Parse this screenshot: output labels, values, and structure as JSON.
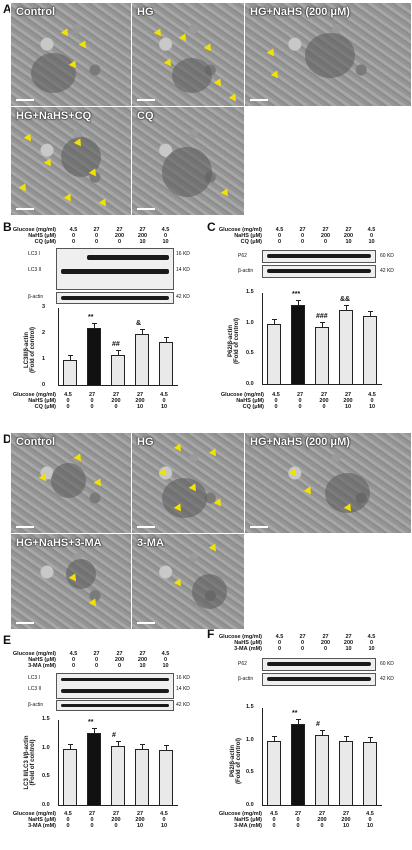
{
  "panel_letters": {
    "a": "A",
    "b": "B",
    "c": "C",
    "d": "D",
    "e": "E",
    "f": "F"
  },
  "em_top": {
    "control": "Control",
    "hg": "HG",
    "hg_nahs": "HG+NaHS (200 μM)",
    "hg_nahs_cq": "HG+NaHS+CQ",
    "cq": "CQ"
  },
  "em_bottom": {
    "control": "Control",
    "hg": "HG",
    "hg_nahs": "HG+NaHS (200 μM)",
    "hg_nahs_3ma": "HG+NaHS+3-MA",
    "three_ma": "3-MA"
  },
  "condition_labels": {
    "glucose": "Glucose (mg/ml)",
    "nahs": "NaHS (μM)",
    "cq": "CQ (μM)",
    "three_ma": "3-MA (mM)"
  },
  "cond_values": {
    "glucose": [
      "4.5",
      "27",
      "27",
      "27",
      "4.5"
    ],
    "nahs": [
      "0",
      "0",
      "200",
      "200",
      "0"
    ],
    "inhib": [
      "0",
      "0",
      "0",
      "10",
      "10"
    ]
  },
  "blot_labels": {
    "lc3i": "LC3 I",
    "lc3ii": "LC3 II",
    "bactin": "β-actin",
    "p62": "P62",
    "kd16": "16 KD",
    "kd14": "14 KD",
    "kd42": "42 KD",
    "kd60": "60 KD"
  },
  "axis_titles": {
    "b": [
      "LC3II/β-actin",
      "(Fold of control)"
    ],
    "c": [
      "P62/β-actin",
      "(Fold of control)"
    ],
    "e": [
      "LC3 II/LC3 I/β-actin",
      "(Fold of control)"
    ],
    "f": [
      "P62/β-actin",
      "(Fold of control)"
    ]
  },
  "chart_data": [
    {
      "type": "bar",
      "panel": "B",
      "ylim": [
        0,
        3
      ],
      "yticks": [
        "0",
        "1",
        "2",
        "3"
      ],
      "values": [
        1.0,
        2.25,
        1.2,
        2.0,
        1.7
      ],
      "sig": [
        "",
        "**",
        "##",
        "&",
        ""
      ]
    },
    {
      "type": "bar",
      "panel": "C",
      "ylim": [
        0,
        1.5
      ],
      "yticks": [
        "0.0",
        "0.5",
        "1.0",
        "1.5"
      ],
      "values": [
        1.0,
        1.3,
        0.95,
        1.22,
        1.12
      ],
      "sig": [
        "",
        "***",
        "###",
        "&&",
        ""
      ]
    },
    {
      "type": "bar",
      "panel": "E",
      "ylim": [
        0,
        1.5
      ],
      "yticks": [
        "0.0",
        "0.5",
        "1.0",
        "1.5"
      ],
      "values": [
        1.0,
        1.27,
        1.05,
        1.0,
        0.98
      ],
      "sig": [
        "",
        "**",
        "#",
        "",
        ""
      ]
    },
    {
      "type": "bar",
      "panel": "F",
      "ylim": [
        0,
        1.5
      ],
      "yticks": [
        "0.0",
        "0.5",
        "1.0",
        "1.5"
      ],
      "values": [
        1.0,
        1.25,
        1.08,
        1.0,
        0.98
      ],
      "sig": [
        "",
        "**",
        "#",
        "",
        ""
      ]
    }
  ],
  "colors": {
    "arrow": "#f2e200",
    "treated_bar": "#111111",
    "control_bar": "#e9e9e9"
  }
}
